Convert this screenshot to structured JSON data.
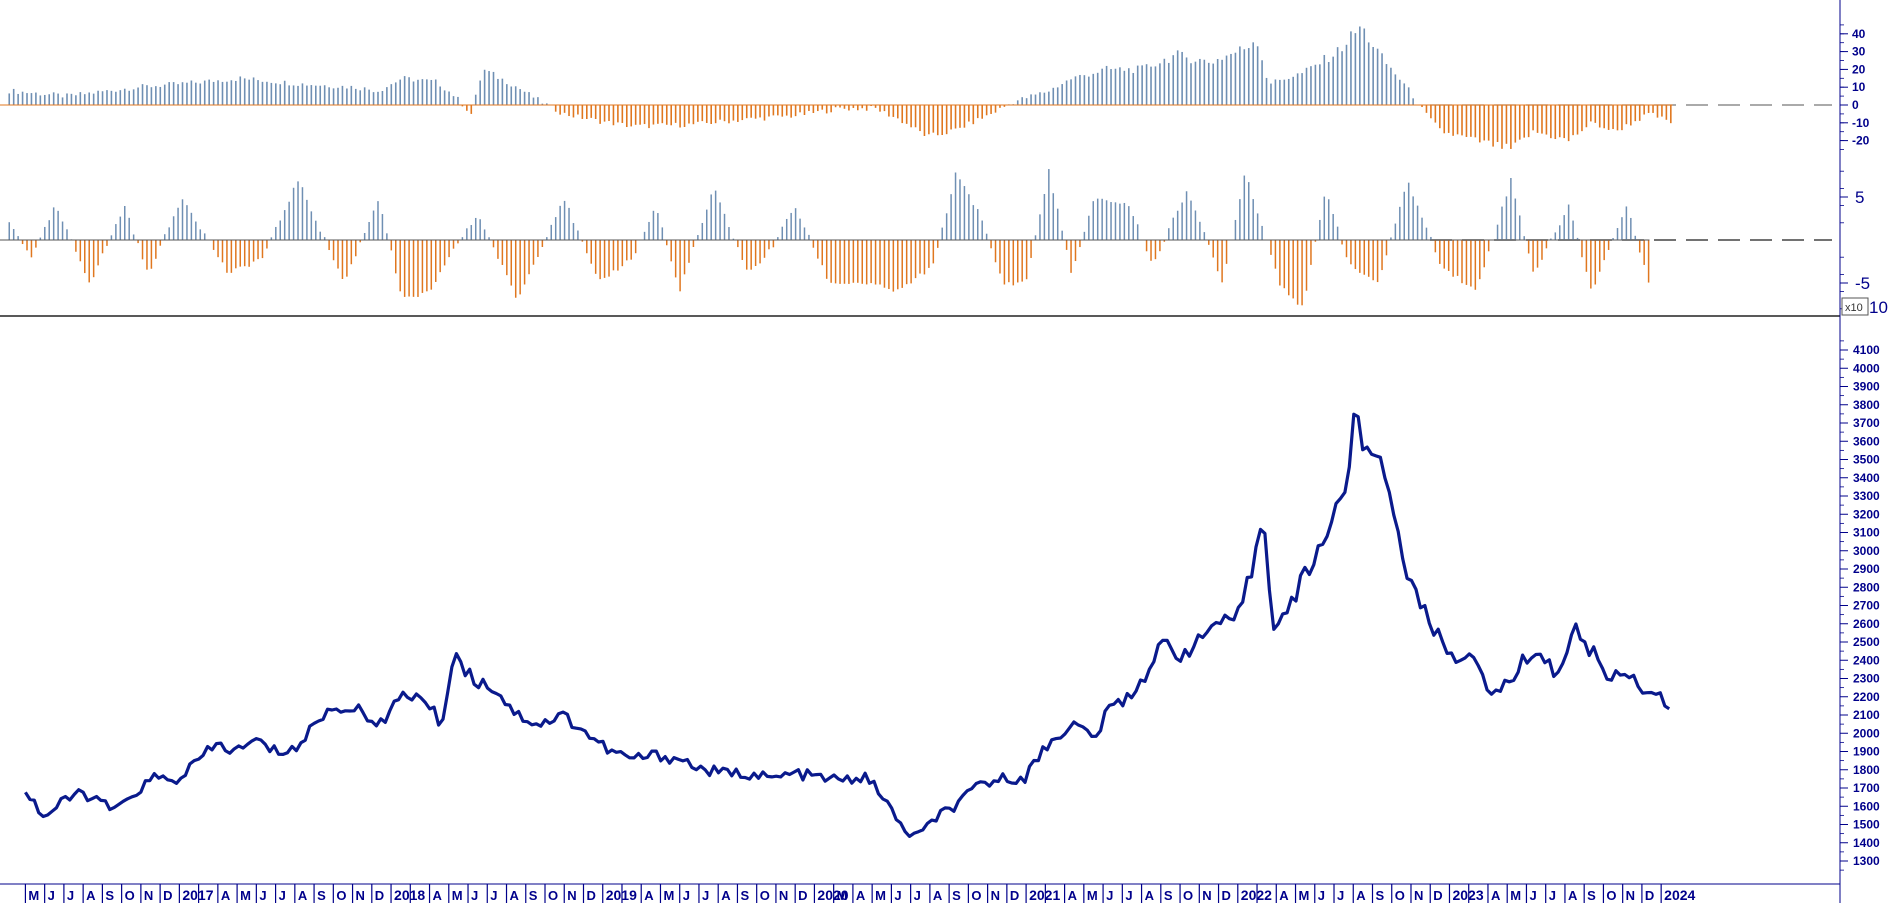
{
  "colors": {
    "positive": "#6f8fb3",
    "negative": "#e0771f",
    "price": "#0a1a8c",
    "axis": "#00008b",
    "separator": "#222222"
  },
  "chart_data": [
    {
      "type": "bar",
      "panel": "top-oscillator",
      "ylim": [
        -30,
        45
      ],
      "tick_labels": [
        "40",
        "30",
        "20",
        "10",
        "0",
        "-10",
        "-20"
      ],
      "zero_line": "dashed",
      "series": [
        {
          "values": [
            [
              2016.35,
              8
            ],
            [
              2016.6,
              5
            ],
            [
              2016.9,
              10
            ],
            [
              2017.1,
              12
            ],
            [
              2017.35,
              15
            ],
            [
              2017.6,
              12
            ],
            [
              2017.85,
              10
            ],
            [
              2017.95,
              8
            ],
            [
              2018.05,
              15
            ],
            [
              2018.2,
              13
            ],
            [
              2018.28,
              5
            ],
            [
              2018.35,
              -5
            ],
            [
              2018.4,
              20
            ],
            [
              2018.55,
              10
            ],
            [
              2018.65,
              2
            ],
            [
              2018.75,
              -5
            ],
            [
              2018.9,
              -9
            ],
            [
              2019.05,
              -12
            ],
            [
              2019.3,
              -11
            ],
            [
              2019.55,
              -8
            ],
            [
              2019.75,
              -6
            ],
            [
              2019.95,
              -2
            ],
            [
              2020.1,
              -2
            ],
            [
              2020.2,
              -8
            ],
            [
              2020.33,
              -18
            ],
            [
              2020.45,
              -14
            ],
            [
              2020.6,
              -5
            ],
            [
              2020.7,
              2
            ],
            [
              2020.85,
              8
            ],
            [
              2020.95,
              15
            ],
            [
              2021.1,
              20
            ],
            [
              2021.25,
              20
            ],
            [
              2021.4,
              28
            ],
            [
              2021.55,
              24
            ],
            [
              2021.7,
              32
            ],
            [
              2021.75,
              38
            ],
            [
              2021.8,
              12
            ],
            [
              2021.95,
              18
            ],
            [
              2022.1,
              30
            ],
            [
              2022.2,
              44
            ],
            [
              2022.3,
              25
            ],
            [
              2022.4,
              10
            ],
            [
              2022.48,
              -5
            ],
            [
              2022.55,
              -15
            ],
            [
              2022.7,
              -20
            ],
            [
              2022.85,
              -25
            ],
            [
              2022.95,
              -15
            ],
            [
              2023.1,
              -20
            ],
            [
              2023.2,
              -10
            ],
            [
              2023.3,
              -15
            ],
            [
              2023.45,
              -5
            ],
            [
              2023.55,
              -10
            ]
          ]
        }
      ]
    },
    {
      "type": "bar",
      "panel": "middle-oscillator",
      "ylim": [
        -8,
        8
      ],
      "tick_labels": [
        "5",
        "-5"
      ],
      "multiplier_label": "x10",
      "bottom_label": "10",
      "zero_line": "dashed",
      "series": [
        {
          "values": [
            [
              2016.35,
              2
            ],
            [
              2016.45,
              -2
            ],
            [
              2016.55,
              4
            ],
            [
              2016.7,
              -5
            ],
            [
              2016.85,
              4
            ],
            [
              2016.95,
              -4
            ],
            [
              2017.1,
              5
            ],
            [
              2017.3,
              -4
            ],
            [
              2017.45,
              -2
            ],
            [
              2017.6,
              7
            ],
            [
              2017.8,
              -5
            ],
            [
              2017.95,
              5
            ],
            [
              2018.05,
              -7
            ],
            [
              2018.18,
              -6
            ],
            [
              2018.25,
              -2
            ],
            [
              2018.38,
              3
            ],
            [
              2018.55,
              -7
            ],
            [
              2018.75,
              5
            ],
            [
              2018.9,
              -5
            ],
            [
              2019.05,
              -2
            ],
            [
              2019.15,
              4
            ],
            [
              2019.25,
              -6
            ],
            [
              2019.4,
              6
            ],
            [
              2019.55,
              -4
            ],
            [
              2019.65,
              -1
            ],
            [
              2019.75,
              4
            ],
            [
              2019.9,
              -5
            ],
            [
              2020.05,
              -5
            ],
            [
              2020.2,
              -6
            ],
            [
              2020.35,
              -3
            ],
            [
              2020.45,
              8
            ],
            [
              2020.55,
              3
            ],
            [
              2020.65,
              -5
            ],
            [
              2020.75,
              -5
            ],
            [
              2020.85,
              8
            ],
            [
              2020.95,
              -4
            ],
            [
              2021.05,
              5
            ],
            [
              2021.2,
              4
            ],
            [
              2021.3,
              -3
            ],
            [
              2021.45,
              6
            ],
            [
              2021.6,
              -5
            ],
            [
              2021.7,
              8
            ],
            [
              2021.85,
              -5
            ],
            [
              2021.95,
              -8
            ],
            [
              2022.05,
              6
            ],
            [
              2022.15,
              -3
            ],
            [
              2022.28,
              -5
            ],
            [
              2022.4,
              7
            ],
            [
              2022.55,
              -3
            ],
            [
              2022.7,
              -6
            ],
            [
              2022.85,
              7
            ],
            [
              2022.95,
              -4
            ],
            [
              2023.1,
              4
            ],
            [
              2023.2,
              -6
            ],
            [
              2023.35,
              4
            ],
            [
              2023.45,
              -5
            ]
          ]
        }
      ]
    },
    {
      "type": "line",
      "panel": "price",
      "ylim": [
        1200,
        4150
      ],
      "y_ticks": [
        1300,
        1400,
        1500,
        1600,
        1700,
        1800,
        1900,
        2000,
        2100,
        2200,
        2300,
        2400,
        2500,
        2600,
        2700,
        2800,
        2900,
        3000,
        3100,
        3200,
        3300,
        3400,
        3500,
        3600,
        3700,
        3800,
        3900,
        4000,
        4100
      ],
      "x_months": [
        "M",
        "J",
        "J",
        "A",
        "S",
        "O",
        "N",
        "D",
        "2017",
        "",
        "A",
        "M",
        "J",
        "J",
        "A",
        "S",
        "O",
        "N",
        "D",
        "2018",
        "",
        "A",
        "M",
        "J",
        "J",
        "A",
        "S",
        "O",
        "N",
        "D",
        "2019",
        "",
        "A",
        "M",
        "J",
        "J",
        "A",
        "S",
        "O",
        "N",
        "D",
        "2020",
        "M",
        "A",
        "M",
        "J",
        "J",
        "A",
        "S",
        "O",
        "N",
        "D",
        "2021",
        "",
        "A",
        "M",
        "J",
        "J",
        "A",
        "S",
        "O",
        "N",
        "D",
        "2022",
        "",
        "A",
        "M",
        "J",
        "J",
        "A",
        "S",
        "O",
        "N",
        "D",
        "2023",
        "",
        "A",
        "M",
        "J",
        "J",
        "A",
        "S",
        "O",
        "N",
        "D",
        "2024"
      ],
      "x_start": 2016.42,
      "x_step": 0.0833,
      "series": [
        {
          "values": [
            [
              2016.42,
              1690
            ],
            [
              2016.5,
              1540
            ],
            [
              2016.58,
              1620
            ],
            [
              2016.66,
              1680
            ],
            [
              2016.74,
              1620
            ],
            [
              2016.82,
              1580
            ],
            [
              2016.9,
              1680
            ],
            [
              2016.98,
              1760
            ],
            [
              2017.06,
              1730
            ],
            [
              2017.15,
              1830
            ],
            [
              2017.25,
              1940
            ],
            [
              2017.33,
              1900
            ],
            [
              2017.42,
              1960
            ],
            [
              2017.5,
              1900
            ],
            [
              2017.6,
              1920
            ],
            [
              2017.7,
              2100
            ],
            [
              2017.8,
              2150
            ],
            [
              2017.9,
              2100
            ],
            [
              2017.98,
              2050
            ],
            [
              2018.05,
              2230
            ],
            [
              2018.15,
              2180
            ],
            [
              2018.22,
              2050
            ],
            [
              2018.28,
              2450
            ],
            [
              2018.35,
              2300
            ],
            [
              2018.45,
              2250
            ],
            [
              2018.55,
              2100
            ],
            [
              2018.65,
              2050
            ],
            [
              2018.75,
              2100
            ],
            [
              2018.85,
              2000
            ],
            [
              2018.95,
              1900
            ],
            [
              2019.05,
              1860
            ],
            [
              2019.15,
              1880
            ],
            [
              2019.25,
              1860
            ],
            [
              2019.35,
              1800
            ],
            [
              2019.45,
              1780
            ],
            [
              2019.55,
              1780
            ],
            [
              2019.65,
              1750
            ],
            [
              2019.75,
              1780
            ],
            [
              2019.85,
              1760
            ],
            [
              2019.95,
              1740
            ],
            [
              2020.05,
              1760
            ],
            [
              2020.12,
              1680
            ],
            [
              2020.18,
              1550
            ],
            [
              2020.23,
              1450
            ],
            [
              2020.3,
              1450
            ],
            [
              2020.38,
              1560
            ],
            [
              2020.45,
              1600
            ],
            [
              2020.55,
              1720
            ],
            [
              2020.65,
              1750
            ],
            [
              2020.75,
              1760
            ],
            [
              2020.82,
              1900
            ],
            [
              2020.88,
              1980
            ],
            [
              2020.95,
              2050
            ],
            [
              2021.05,
              1980
            ],
            [
              2021.12,
              2150
            ],
            [
              2021.2,
              2200
            ],
            [
              2021.28,
              2350
            ],
            [
              2021.35,
              2500
            ],
            [
              2021.42,
              2430
            ],
            [
              2021.5,
              2500
            ],
            [
              2021.58,
              2620
            ],
            [
              2021.65,
              2580
            ],
            [
              2021.72,
              2850
            ],
            [
              2021.78,
              3200
            ],
            [
              2021.82,
              2600
            ],
            [
              2021.88,
              2650
            ],
            [
              2021.95,
              2850
            ],
            [
              2022.02,
              3000
            ],
            [
              2022.08,
              3200
            ],
            [
              2022.15,
              3400
            ],
            [
              2022.18,
              3850
            ],
            [
              2022.22,
              3500
            ],
            [
              2022.27,
              3550
            ],
            [
              2022.32,
              3350
            ],
            [
              2022.38,
              3000
            ],
            [
              2022.42,
              2800
            ],
            [
              2022.48,
              2650
            ],
            [
              2022.55,
              2500
            ],
            [
              2022.62,
              2420
            ],
            [
              2022.7,
              2380
            ],
            [
              2022.78,
              2200
            ],
            [
              2022.85,
              2300
            ],
            [
              2022.92,
              2420
            ],
            [
              2022.98,
              2450
            ],
            [
              2023.05,
              2300
            ],
            [
              2023.12,
              2580
            ],
            [
              2023.2,
              2450
            ],
            [
              2023.28,
              2300
            ],
            [
              2023.35,
              2350
            ],
            [
              2023.42,
              2250
            ],
            [
              2023.5,
              2200
            ],
            [
              2023.55,
              2100
            ]
          ]
        }
      ]
    }
  ]
}
